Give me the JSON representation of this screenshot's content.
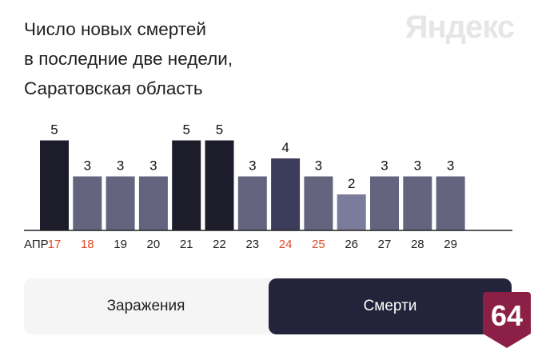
{
  "title_lines": [
    "Число новых смертей",
    "в последние две недели,",
    "Саратовская область"
  ],
  "logo_text": "Яндекс",
  "month_label": "АПР",
  "chart_data": {
    "type": "bar",
    "title": "Число новых смертей в последние две недели, Саратовская область",
    "categories": [
      "17",
      "18",
      "19",
      "20",
      "21",
      "22",
      "23",
      "24",
      "25",
      "26",
      "27",
      "28",
      "29"
    ],
    "values": [
      5,
      3,
      3,
      3,
      5,
      5,
      3,
      4,
      3,
      2,
      3,
      3,
      3
    ],
    "weekend_categories": [
      "17",
      "18",
      "24",
      "25"
    ],
    "x_label_prefix": "АПР",
    "ylim": [
      0,
      5
    ],
    "grid": false,
    "data_labels": true,
    "colors": {
      "2": "#7b7b9c",
      "3": "#64647f",
      "4": "#3c3d5a",
      "5": "#1c1c2a",
      "weekend_label": "#e04a2a",
      "weekday_label": "#222222",
      "baseline": "#222222"
    }
  },
  "toggle": {
    "cases_label": "Заражения",
    "deaths_label": "Смерти",
    "active": "deaths"
  },
  "badge": {
    "text": "64",
    "color": "#8c1f46"
  }
}
